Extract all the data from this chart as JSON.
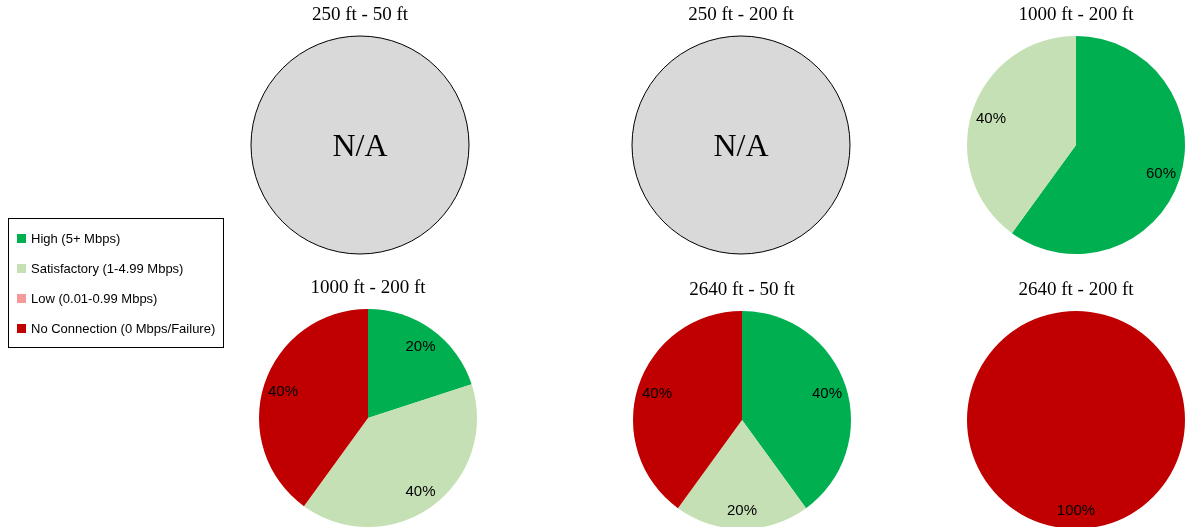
{
  "chart_data": [
    {
      "type": "other",
      "title": "250 ft - 50 ft",
      "annotations": [
        "N/A"
      ]
    },
    {
      "type": "other",
      "title": "250 ft - 200 ft",
      "annotations": [
        "N/A"
      ]
    },
    {
      "type": "pie",
      "title": "1000 ft - 200 ft",
      "categories": [
        null,
        null,
        null,
        null
      ],
      "values": [
        60,
        40,
        0,
        0
      ],
      "colors": [
        "#00b050",
        "#c5e0b4",
        "#f4999a",
        "#c00000"
      ],
      "value_labels": [
        "60%",
        "40%",
        null,
        null
      ]
    },
    {
      "type": "pie",
      "title": "1000 ft - 200 ft",
      "categories": [
        "High (5+ Mbps)",
        "Satisfactory (1-4.99 Mbps)",
        "Low (0.01-0.99 Mbps)",
        "No Connection (0 Mbps/Failure)"
      ],
      "values": [
        20,
        40,
        0,
        40
      ],
      "colors": [
        "#00b050",
        "#c5e0b4",
        "#f4999a",
        "#c00000"
      ],
      "value_labels": [
        "20%",
        "40%",
        null,
        "40%"
      ],
      "legend": "left"
    },
    {
      "type": "pie",
      "title": "2640 ft - 50 ft",
      "categories": [
        null,
        null,
        null,
        null
      ],
      "values": [
        40,
        20,
        0,
        40
      ],
      "colors": [
        "#00b050",
        "#c5e0b4",
        "#f4999a",
        "#c00000"
      ],
      "value_labels": [
        "40%",
        "20%",
        null,
        "40%"
      ]
    },
    {
      "type": "pie",
      "title": "2640 ft - 200 ft",
      "categories": [
        null,
        null,
        null,
        null
      ],
      "values": [
        0,
        0,
        0,
        100
      ],
      "colors": [
        "#00b050",
        "#c5e0b4",
        "#f4999a",
        "#c00000"
      ],
      "value_labels": [
        null,
        null,
        null,
        "100%"
      ]
    }
  ]
}
